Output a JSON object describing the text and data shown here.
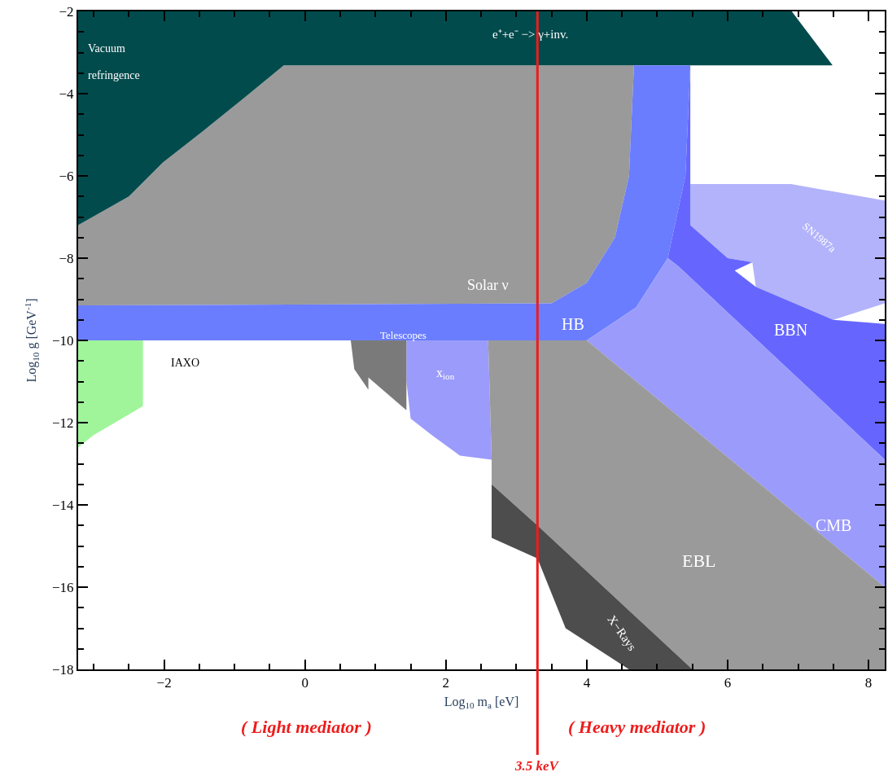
{
  "chart_data": {
    "type": "area",
    "xlabel": "Log$_{10}$ m$_{a}$ [eV]",
    "ylabel": "Log$_{10}$ g [GeV$^{-1}$]",
    "xlim": [
      -3.22,
      8.23
    ],
    "ylim": [
      -18,
      -2
    ],
    "xticks": [
      -2,
      0,
      2,
      4,
      6,
      8
    ],
    "yticks": [
      -18,
      -16,
      -14,
      -12,
      -10,
      -8,
      -6,
      -4,
      -2
    ],
    "series": [
      {
        "color": "#9a9a9a",
        "x": [
          -3.22,
          -2.5,
          -2.02,
          -1.44,
          -0.86,
          -0.3,
          4.67,
          4.6,
          4.4,
          4.0,
          3.5,
          -3.22
        ],
        "values": [
          -7.2,
          -6.5,
          -5.68,
          -4.9,
          -4.1,
          -3.31,
          -3.31,
          -6.0,
          -7.5,
          -8.6,
          -9.1,
          -9.15
        ]
      },
      {
        "color": "#024b4d",
        "x": [
          -3.22,
          6.91,
          7.49,
          -0.3,
          -0.86,
          -1.44,
          -2.02,
          -2.5,
          -3.22
        ],
        "values": [
          -2,
          -2,
          -3.31,
          -3.31,
          -4.1,
          -4.9,
          -5.68,
          -6.5,
          -7.2
        ]
      },
      {
        "color": "#6a7dff",
        "x": [
          -3.22,
          3.5,
          4.0,
          4.4,
          4.6,
          4.67,
          5.47,
          5.4,
          5.15,
          4.7,
          4.0,
          -3.22
        ],
        "values": [
          -9.15,
          -9.1,
          -8.6,
          -7.5,
          -6.0,
          -3.31,
          -3.31,
          -6.0,
          -8.0,
          -9.2,
          -10.0,
          -10.0
        ]
      },
      {
        "color": "#b3b3fb",
        "x": [
          5.47,
          6.9,
          8.23,
          8.23,
          7.5,
          6.4,
          6.35,
          6.0,
          5.47
        ],
        "values": [
          -6.2,
          -6.2,
          -6.6,
          -9.1,
          -9.5,
          -8.7,
          -8.1,
          -8.0,
          -7.2
        ]
      },
      {
        "color": "#6666ff",
        "x": [
          5.4,
          5.47,
          5.47,
          6.0,
          6.35,
          6.1,
          6.4,
          7.5,
          8.23,
          8.23,
          5.3,
          5.15
        ],
        "values": [
          -6.0,
          -3.31,
          -7.2,
          -8.0,
          -8.1,
          -8.3,
          -8.7,
          -9.5,
          -9.6,
          -12.9,
          -8.2,
          -8.0
        ]
      },
      {
        "color": "#9b9bfb",
        "x": [
          4.0,
          4.7,
          5.15,
          5.3,
          8.23,
          8.23
        ],
        "values": [
          -10.0,
          -9.2,
          -8.0,
          -8.2,
          -12.9,
          -16.0
        ]
      },
      {
        "color": "#9b9bfb",
        "x": [
          1.44,
          2.6,
          2.65,
          2.2,
          1.8,
          1.5,
          1.44
        ],
        "values": [
          -10.0,
          -10.0,
          -12.9,
          -12.8,
          -12.3,
          -11.9,
          -11.0
        ]
      },
      {
        "color": "#9a9a9a",
        "x": [
          2.6,
          4.0,
          8.23,
          8.23,
          5.5,
          3.3,
          2.65,
          2.65
        ],
        "values": [
          -10.0,
          -10.0,
          -16.0,
          -18.0,
          -18.0,
          -14.5,
          -13.5,
          -12.9
        ]
      },
      {
        "color": "#4d4d4d",
        "x": [
          2.65,
          3.3,
          5.5,
          4.6,
          3.7,
          3.3,
          2.65
        ],
        "values": [
          -13.5,
          -14.5,
          -18.0,
          -18.0,
          -17.0,
          -15.3,
          -14.8
        ]
      },
      {
        "color": "#7a7a7a",
        "x": [
          0.65,
          1.44,
          1.44,
          0.9,
          0.9,
          0.7
        ],
        "values": [
          -10.0,
          -10.0,
          -11.7,
          -10.9,
          -11.2,
          -10.7
        ]
      },
      {
        "color": "#a0f59a",
        "x": [
          -3.22,
          -2.3,
          -2.3,
          -2.6,
          -3.0,
          -3.22
        ],
        "values": [
          -10.0,
          -10.0,
          -11.6,
          -11.9,
          -12.3,
          -12.6
        ]
      }
    ],
    "ref_lines": [
      {
        "axis": "x",
        "value": 3.3,
        "label": "3.5 keV",
        "color": "#ee1c1c"
      }
    ],
    "annotations": [
      "Vacuum",
      "refringence",
      "e⁺+e⁻ −> γ+inv.",
      "Solar ν",
      "HB",
      "Telescopes",
      "x$_{ion}$",
      "IAXO",
      "SN1987a",
      "BBN",
      "CMB",
      "EBL",
      "X−Rays",
      "( Light mediator )",
      "( Heavy mediator )"
    ]
  }
}
